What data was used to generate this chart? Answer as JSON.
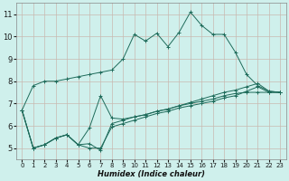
{
  "xlabel": "Humidex (Indice chaleur)",
  "bg_color": "#cff0ec",
  "grid_color": "#c8b8b0",
  "line_color": "#1e6b5a",
  "xlim": [
    -0.5,
    23.5
  ],
  "ylim": [
    4.5,
    11.5
  ],
  "xticks": [
    0,
    1,
    2,
    3,
    4,
    5,
    6,
    7,
    8,
    9,
    10,
    11,
    12,
    13,
    14,
    15,
    16,
    17,
    18,
    19,
    20,
    21,
    22,
    23
  ],
  "yticks": [
    5,
    6,
    7,
    8,
    9,
    10,
    11
  ],
  "series": [
    [
      6.7,
      7.8,
      8.0,
      8.0,
      8.1,
      8.2,
      8.3,
      8.4,
      8.5,
      9.0,
      10.1,
      9.8,
      10.15,
      9.55,
      10.2,
      11.1,
      10.5,
      10.1,
      10.1,
      9.3,
      8.3,
      7.8,
      7.55,
      7.5
    ],
    [
      6.7,
      5.0,
      5.15,
      5.45,
      5.6,
      5.15,
      5.9,
      7.35,
      6.35,
      6.3,
      6.4,
      6.5,
      6.65,
      6.75,
      6.9,
      7.05,
      7.2,
      7.35,
      7.5,
      7.6,
      7.75,
      7.9,
      7.55,
      7.5
    ],
    [
      6.7,
      5.0,
      5.15,
      5.45,
      5.6,
      5.15,
      5.2,
      4.9,
      6.1,
      6.25,
      6.4,
      6.5,
      6.65,
      6.75,
      6.9,
      7.0,
      7.1,
      7.2,
      7.35,
      7.45,
      7.5,
      7.5,
      7.5,
      7.5
    ],
    [
      6.7,
      5.0,
      5.15,
      5.45,
      5.6,
      5.15,
      5.0,
      5.0,
      5.95,
      6.1,
      6.25,
      6.4,
      6.55,
      6.65,
      6.8,
      6.9,
      7.0,
      7.1,
      7.25,
      7.35,
      7.55,
      7.75,
      7.5,
      7.5
    ]
  ]
}
